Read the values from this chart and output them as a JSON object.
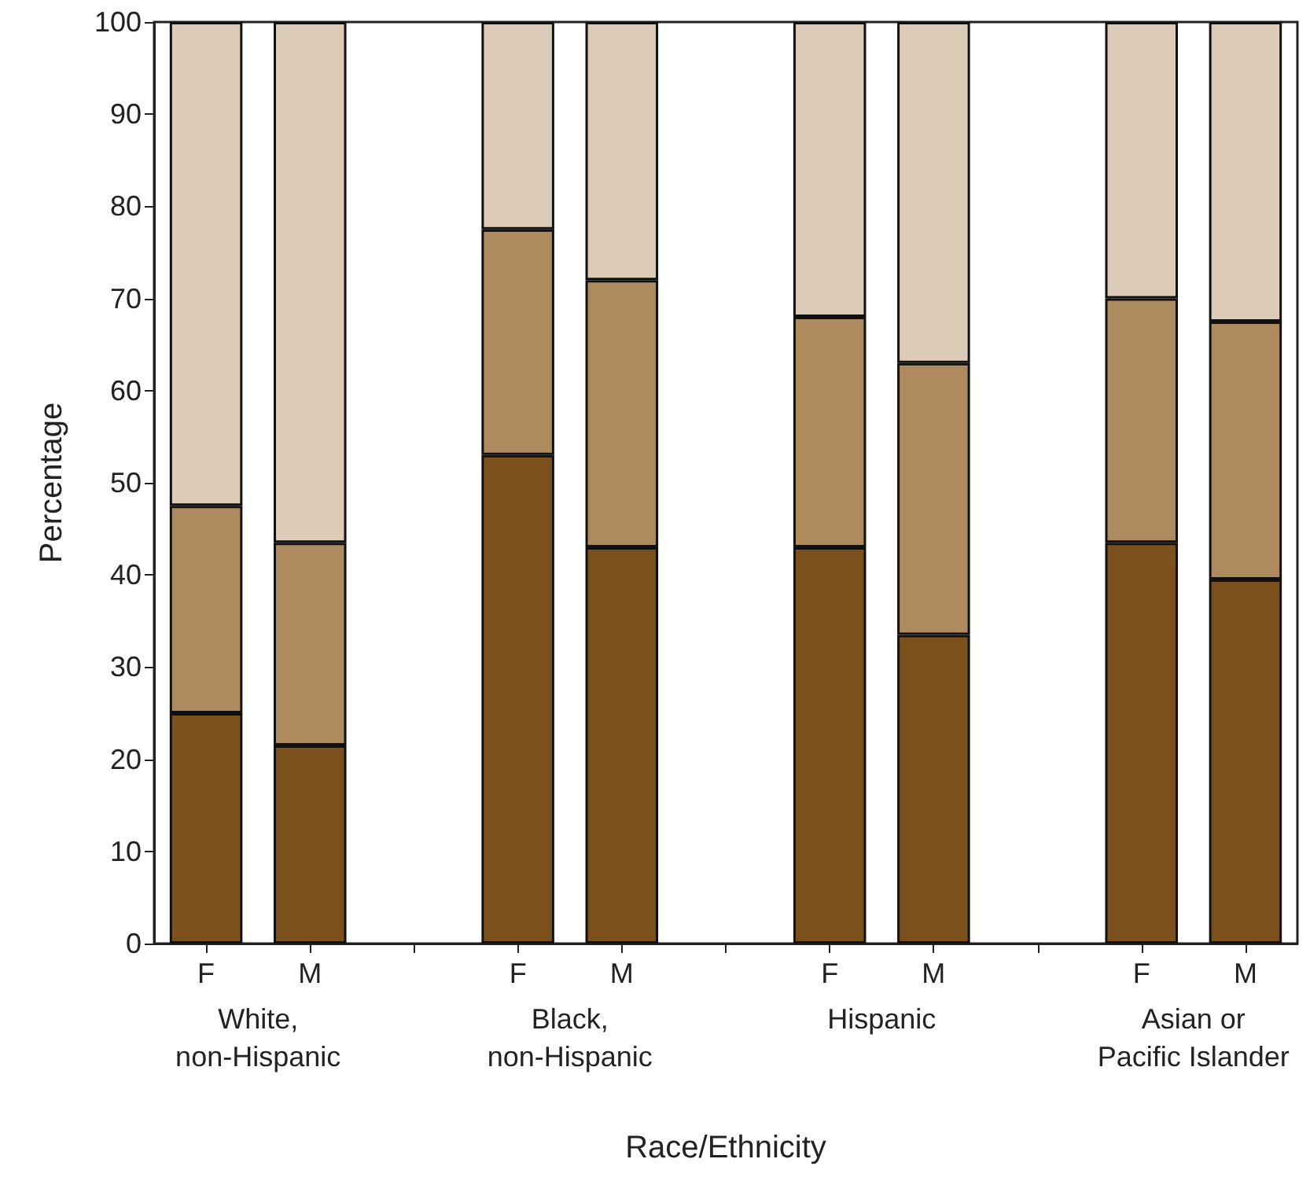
{
  "chart_data": {
    "type": "bar",
    "stacked": true,
    "categories": [
      "F",
      "M",
      null,
      "F",
      "M",
      null,
      "F",
      "M",
      null,
      "F",
      "M"
    ],
    "series": [
      {
        "color": "#7b501c",
        "values": [
          25,
          21.5,
          null,
          53,
          43,
          null,
          43,
          33.5,
          null,
          43.5,
          39.5
        ]
      },
      {
        "color": "#ae8a5f",
        "values": [
          22.5,
          22,
          null,
          24.5,
          29,
          null,
          25,
          29.5,
          null,
          26.5,
          28
        ]
      },
      {
        "color": "#dccbb7",
        "values": [
          52.5,
          56.5,
          null,
          22.5,
          28,
          null,
          32,
          37,
          null,
          30,
          32.5
        ]
      }
    ],
    "ylim": [
      0,
      100
    ],
    "yticks": [
      0,
      10,
      20,
      30,
      40,
      50,
      60,
      70,
      80,
      90,
      100
    ],
    "xlabel": "Race/Ethnicity",
    "ylabel": "Percentage",
    "annotations": [
      "White,\nnon-Hispanic",
      "Black,\nnon-Hispanic",
      "Hispanic",
      "Asian or\nPacific Islander"
    ],
    "grid": false
  }
}
